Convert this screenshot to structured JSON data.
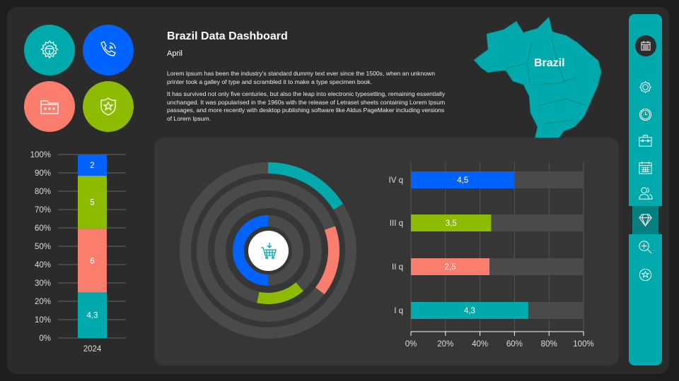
{
  "header": {
    "title": "Brazil Data Dashboard",
    "subtitle": "April",
    "paragraph1": "Lorem Ipsum has been the industry's standard dummy text ever since the 1500s, when an unknown printer took a galley of type and scrambled it to make a type specimen book.",
    "paragraph2": "It has survived not only five centuries, but also the leap into electronic typesetting, remaining essentially unchanged. It was popularised in the 1960s with the release of Letraset sheets containing Lorem Ipsum passages, and more recently with desktop publishing software like Aldus PageMaker including versions of Lorem Ipsum."
  },
  "map": {
    "label": "Brazil",
    "color": "#00a9ab"
  },
  "colors": {
    "teal": "#00a9ab",
    "blue": "#0062ff",
    "salmon": "#fa7d6e",
    "green": "#8cbb00",
    "track": "#4a4a4a"
  },
  "tiles": [
    {
      "icon": "steering-gear-icon",
      "color": "#00a9ab"
    },
    {
      "icon": "phone-call-icon",
      "color": "#0062ff"
    },
    {
      "icon": "folder-icon",
      "color": "#fa7d6e"
    },
    {
      "icon": "shield-star-icon",
      "color": "#8cbb00"
    }
  ],
  "sidebar": {
    "items": [
      "calendar-icon",
      "gear-icon",
      "clock-icon",
      "toolbox-icon",
      "calendar-grid-icon",
      "users-icon",
      "diamond-icon",
      "zoom-in-icon",
      "star-badge-icon"
    ],
    "active": "diamond-icon"
  },
  "center_icon": "shopping-cart-download-icon",
  "chart_data": [
    {
      "type": "bar",
      "stacked": "percent",
      "categories": [
        "2024"
      ],
      "series": [
        {
          "values": [
            4.3
          ],
          "label": "4,3",
          "color": "#00a9ab"
        },
        {
          "values": [
            6
          ],
          "label": "6",
          "color": "#fa7d6e"
        },
        {
          "values": [
            5
          ],
          "label": "5",
          "color": "#8cbb00"
        },
        {
          "values": [
            2
          ],
          "label": "2",
          "color": "#0062ff"
        }
      ],
      "ylim": [
        0,
        100
      ],
      "yticks": [
        "0%",
        "10%",
        "20%",
        "30%",
        "40%",
        "50%",
        "60%",
        "70%",
        "80%",
        "90%",
        "100%"
      ],
      "grid": true
    },
    {
      "type": "radial-bar",
      "rings": [
        {
          "start_deg": 0,
          "end_deg": 58,
          "color": "#00a9ab"
        },
        {
          "start_deg": 70,
          "end_deg": 128,
          "color": "#fa7d6e"
        },
        {
          "start_deg": 139,
          "end_deg": 192,
          "color": "#8cbb00"
        },
        {
          "start_deg": 180,
          "end_deg": 360,
          "color": "#0062ff"
        }
      ]
    },
    {
      "type": "bar",
      "orientation": "horizontal",
      "categories": [
        "IV q",
        "III q",
        "II q",
        "I q"
      ],
      "values_pct": [
        60,
        46.5,
        45.5,
        68
      ],
      "labels": [
        "4,5",
        "3,5",
        "2,5",
        "4,3"
      ],
      "colors": [
        "#0062ff",
        "#8cbb00",
        "#fa7d6e",
        "#00a9ab"
      ],
      "xlim": [
        0,
        100
      ],
      "xticks": [
        "0%",
        "20%",
        "40%",
        "60%",
        "80%",
        "100%"
      ],
      "grid": true
    }
  ]
}
